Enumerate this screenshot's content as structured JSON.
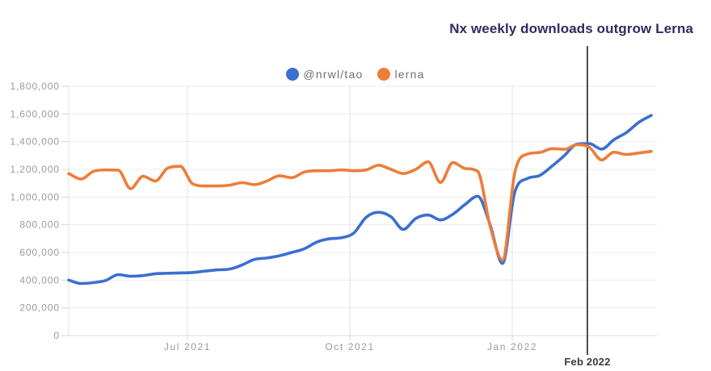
{
  "chart_data": {
    "type": "line",
    "title": "Nx weekly downloads outgrow Lerna",
    "xlabel": "",
    "ylabel": "",
    "ylim": [
      0,
      1800000
    ],
    "ytick_step": 200000,
    "grid": true,
    "legend_position": "top-center",
    "x_tick_labels": [
      "Jul 2021",
      "Oct 2021",
      "Jan 2022"
    ],
    "x_ticks": [
      {
        "label": "Jul 2021",
        "i": 9.58
      },
      {
        "label": "Oct 2021",
        "i": 22.69
      },
      {
        "label": "Jan 2022",
        "i": 35.79
      }
    ],
    "annotation": {
      "label": "Feb 2022",
      "i": 41.85
    },
    "x": [
      "2021-04-25",
      "2021-05-02",
      "2021-05-09",
      "2021-05-16",
      "2021-05-23",
      "2021-05-30",
      "2021-06-06",
      "2021-06-13",
      "2021-06-20",
      "2021-06-27",
      "2021-07-04",
      "2021-07-11",
      "2021-07-18",
      "2021-07-25",
      "2021-08-01",
      "2021-08-08",
      "2021-08-15",
      "2021-08-22",
      "2021-08-29",
      "2021-09-05",
      "2021-09-12",
      "2021-09-19",
      "2021-09-26",
      "2021-10-03",
      "2021-10-10",
      "2021-10-17",
      "2021-10-24",
      "2021-10-31",
      "2021-11-07",
      "2021-11-14",
      "2021-11-21",
      "2021-11-28",
      "2021-12-05",
      "2021-12-12",
      "2021-12-19",
      "2021-12-26",
      "2022-01-02",
      "2022-01-09",
      "2022-01-16",
      "2022-01-23",
      "2022-01-30",
      "2022-02-06",
      "2022-02-13",
      "2022-02-20",
      "2022-02-27",
      "2022-03-06",
      "2022-03-13",
      "2022-03-20"
    ],
    "series": [
      {
        "name": "@nrwl/tao",
        "color": "#3b6fd0",
        "values": [
          400000,
          376000,
          382000,
          398000,
          440000,
          428000,
          433000,
          446000,
          450000,
          452000,
          455000,
          465000,
          474000,
          480000,
          510000,
          550000,
          560000,
          576000,
          600000,
          626000,
          674000,
          698000,
          706000,
          740000,
          854000,
          890000,
          858000,
          766000,
          845000,
          870000,
          835000,
          876000,
          948000,
          1006000,
          800000,
          520000,
          1040000,
          1134000,
          1156000,
          1224000,
          1300000,
          1382000,
          1386000,
          1346000,
          1415000,
          1466000,
          1540000,
          1590000
        ]
      },
      {
        "name": "lerna",
        "color": "#ed7d38",
        "values": [
          1170000,
          1130000,
          1186000,
          1196000,
          1194000,
          1060000,
          1150000,
          1116000,
          1210000,
          1222000,
          1096000,
          1080000,
          1080000,
          1086000,
          1104000,
          1090000,
          1116000,
          1154000,
          1140000,
          1180000,
          1190000,
          1190000,
          1196000,
          1190000,
          1196000,
          1230000,
          1200000,
          1170000,
          1200000,
          1255000,
          1105000,
          1250000,
          1206000,
          1186000,
          790000,
          545000,
          1180000,
          1310000,
          1322000,
          1350000,
          1345000,
          1378000,
          1360000,
          1268000,
          1324000,
          1308000,
          1318000,
          1330000
        ]
      }
    ]
  },
  "colors": {
    "background": "#ffffff",
    "title_text": "#2f2c5f",
    "axis_text": "#9a9a9a",
    "legend_text": "#6f6f6f",
    "grid_horizontal": "#ececec",
    "grid_vertical": "#e2e2e2",
    "axis_line": "#d9d9d9",
    "tick": "#d4d4d4",
    "annotation_line": "#4e4e4e",
    "annotation_label": "#3c3c3c"
  }
}
